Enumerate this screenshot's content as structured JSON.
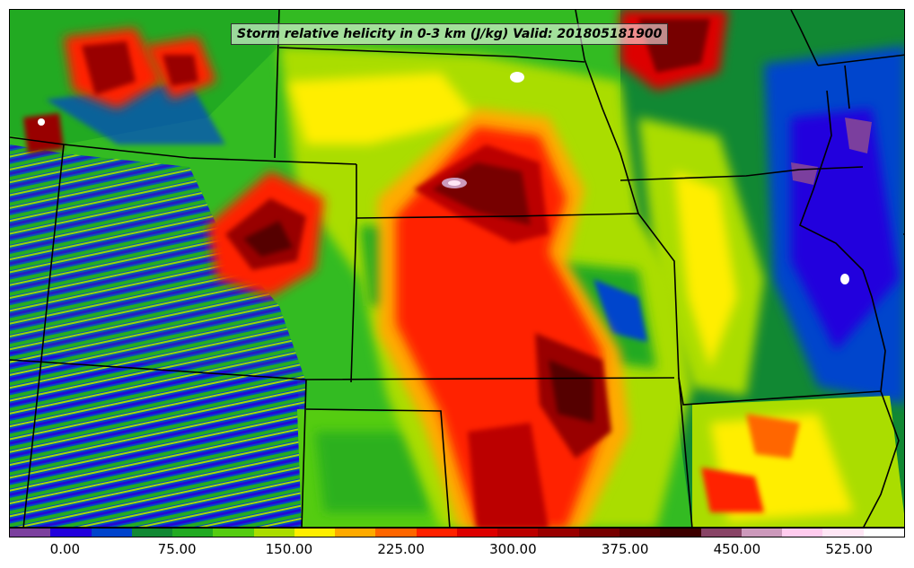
{
  "title": "Storm relative helicity in 0-3 km (J/kg) Valid: 201805181900",
  "colorbar": {
    "colors": [
      "#7b3f9e",
      "#2200dd",
      "#0044cc",
      "#118833",
      "#22aa22",
      "#55cc11",
      "#aadd00",
      "#ffee00",
      "#ffaa00",
      "#ff6600",
      "#ff2200",
      "#dd0000",
      "#bb0000",
      "#990000",
      "#770000",
      "#550000",
      "#3d0000",
      "#884466",
      "#cc99bb",
      "#ffccee",
      "#ffe6f5",
      "#ffffff"
    ],
    "tick_labels": [
      "0.00",
      "75.00",
      "150.00",
      "225.00",
      "300.00",
      "375.00",
      "450.00",
      "525.00"
    ],
    "tick_values": [
      0,
      75,
      150,
      225,
      300,
      375,
      450,
      525
    ],
    "range": [
      -37.5,
      562.5
    ]
  }
}
